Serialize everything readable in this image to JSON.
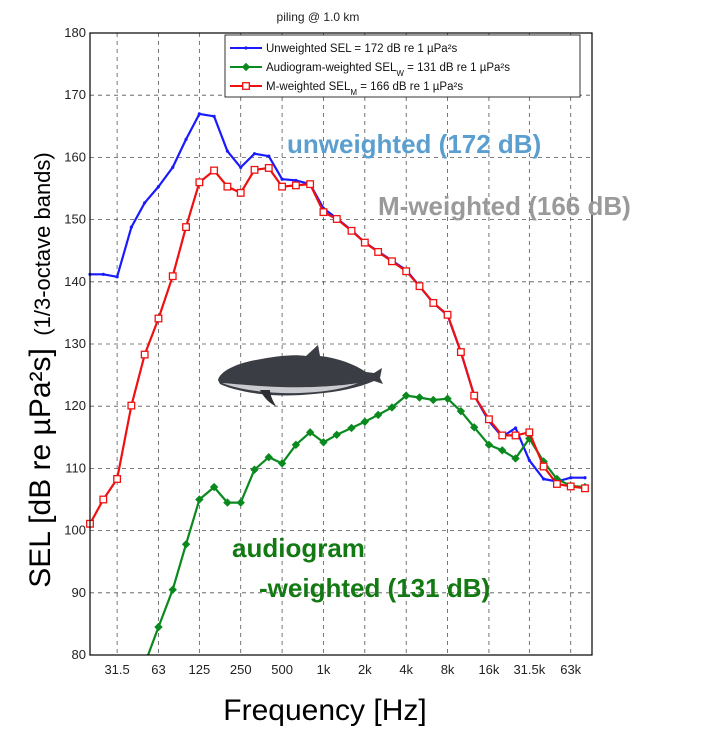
{
  "chart_data": {
    "type": "line",
    "title": "piling @ 1.0 km",
    "xlabel": "Frequency  [Hz]",
    "ylabel_main": "SEL   [dB re µPa²s]",
    "ylabel_sub": "(1/3-octave bands)",
    "ylim": [
      80,
      180
    ],
    "yticks": [
      80,
      90,
      100,
      110,
      120,
      130,
      140,
      150,
      160,
      170,
      180
    ],
    "x_scale": "log",
    "xlim": [
      20,
      90000
    ],
    "xticks": [
      {
        "value": 31.5,
        "label": "31.5"
      },
      {
        "value": 63,
        "label": "63"
      },
      {
        "value": 125,
        "label": "125"
      },
      {
        "value": 250,
        "label": "250"
      },
      {
        "value": 500,
        "label": "500"
      },
      {
        "value": 1000,
        "label": "1k"
      },
      {
        "value": 2000,
        "label": "2k"
      },
      {
        "value": 4000,
        "label": "4k"
      },
      {
        "value": 8000,
        "label": "8k"
      },
      {
        "value": 16000,
        "label": "16k"
      },
      {
        "value": 31500,
        "label": "31.5k"
      },
      {
        "value": 63000,
        "label": "63k"
      }
    ],
    "grid": true,
    "legend_position": "top-right",
    "x": [
      20,
      25,
      31.5,
      40,
      50,
      63,
      80,
      100,
      125,
      160,
      200,
      250,
      315,
      400,
      500,
      630,
      800,
      1000,
      1250,
      1600,
      2000,
      2500,
      3150,
      4000,
      5000,
      6300,
      8000,
      10000,
      12500,
      16000,
      20000,
      25000,
      31500,
      40000,
      50000,
      63000,
      80000
    ],
    "series": [
      {
        "name": "Unweighted SEL = 172 dB re 1 µPa²s",
        "color": "#1a1aff",
        "marker": "dot",
        "values": [
          141.2,
          141.2,
          140.8,
          148.8,
          152.7,
          155.3,
          158.4,
          162.9,
          167.0,
          166.6,
          161.0,
          158.4,
          160.6,
          160.2,
          156.5,
          156.3,
          155.7,
          151.8,
          150.2,
          148.3,
          146.3,
          144.9,
          143.4,
          141.9,
          139.3,
          136.6,
          134.6,
          128.7,
          121.7,
          117.6,
          115.1,
          116.5,
          111.3,
          108.3,
          107.9,
          108.5,
          108.5
        ]
      },
      {
        "name": "Audiogram-weighted SEL",
        "name_sub": "W",
        "name_tail": " = 131 dB re 1 µPa²s",
        "color": "#0a8a1e",
        "marker": "diamond",
        "values": [
          null,
          null,
          null,
          null,
          78.5,
          84.5,
          90.5,
          97.8,
          105.0,
          107.0,
          104.5,
          104.5,
          109.8,
          111.8,
          110.8,
          113.8,
          115.8,
          114.2,
          115.4,
          116.5,
          117.5,
          118.6,
          119.8,
          121.7,
          121.4,
          121.0,
          121.2,
          119.2,
          116.6,
          113.8,
          112.9,
          111.6,
          114.8,
          111.1,
          108.3,
          107.2,
          107.0
        ]
      },
      {
        "name": "M-weighted SEL",
        "name_sub": "M",
        "name_tail": " = 166 dB re 1 µPa²s",
        "color": "#ee1111",
        "marker": "square",
        "values": [
          101.1,
          105.0,
          108.3,
          120.1,
          128.3,
          134.1,
          140.9,
          148.8,
          156.0,
          157.9,
          155.3,
          154.3,
          158.0,
          158.3,
          155.3,
          155.5,
          155.7,
          151.2,
          150.1,
          148.2,
          146.3,
          144.8,
          143.3,
          141.7,
          139.3,
          136.6,
          134.7,
          128.7,
          121.7,
          117.9,
          115.3,
          115.3,
          115.8,
          110.3,
          107.5,
          107.1,
          106.8
        ]
      }
    ],
    "annotations": [
      {
        "text": "unweighted (172 dB)",
        "color": "#5a9fd0"
      },
      {
        "text": "M-weighted (166 dB)",
        "color": "#9a9a9a"
      },
      {
        "text": "audiogram",
        "color": "#137a13"
      },
      {
        "text": "-weighted (131 dB)",
        "color": "#137a13"
      }
    ]
  }
}
